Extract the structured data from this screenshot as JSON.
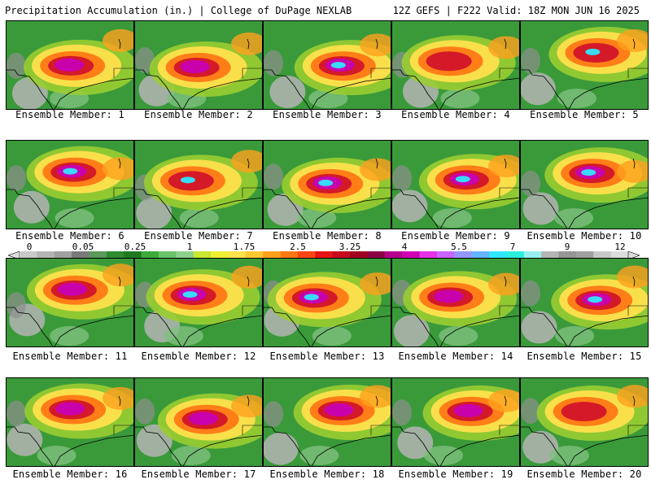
{
  "header": {
    "left": "Precipitation Accumulation (in.) | College of DuPage NEXLAB",
    "right": "12Z GEFS | F222 Valid: 18Z MON JUN 16 2025"
  },
  "colorbar": {
    "tick_labels": [
      "0",
      "0.05",
      "0.25",
      "1",
      "1.75",
      "2.5",
      "3.25",
      "4",
      "5.5",
      "7",
      "9",
      "12"
    ],
    "colors": [
      "#c8c8c8",
      "#b4b4b4",
      "#a0a0a0",
      "#7a7a7a",
      "#5a9a5a",
      "#2e8b2e",
      "#1f7a1f",
      "#3cab3c",
      "#6ac46a",
      "#8ed08e",
      "#c8e632",
      "#f0f032",
      "#ffe14d",
      "#ffc832",
      "#ffa01e",
      "#ff7814",
      "#ff4614",
      "#e61414",
      "#c80a1e",
      "#a0001e",
      "#8c0046",
      "#b4008c",
      "#d200b4",
      "#e632e6",
      "#c864ff",
      "#9696ff",
      "#64b4ff",
      "#32e6ff",
      "#28f0dc",
      "#96f0f0",
      "#b4b4b4",
      "#969696",
      "#a0a0a0",
      "#c8c8c8",
      "#dcdcdc"
    ]
  },
  "members": [
    {
      "label": "Ensemble Member: 1"
    },
    {
      "label": "Ensemble Member: 2"
    },
    {
      "label": "Ensemble Member: 3"
    },
    {
      "label": "Ensemble Member: 4"
    },
    {
      "label": "Ensemble Member: 5"
    },
    {
      "label": "Ensemble Member: 6"
    },
    {
      "label": "Ensemble Member: 7"
    },
    {
      "label": "Ensemble Member: 8"
    },
    {
      "label": "Ensemble Member: 9"
    },
    {
      "label": "Ensemble Member: 10"
    },
    {
      "label": "Ensemble Member: 11"
    },
    {
      "label": "Ensemble Member: 12"
    },
    {
      "label": "Ensemble Member: 13"
    },
    {
      "label": "Ensemble Member: 14"
    },
    {
      "label": "Ensemble Member: 15"
    },
    {
      "label": "Ensemble Member: 16"
    },
    {
      "label": "Ensemble Member: 17"
    },
    {
      "label": "Ensemble Member: 18"
    },
    {
      "label": "Ensemble Member: 19"
    },
    {
      "label": "Ensemble Member: 20"
    }
  ]
}
